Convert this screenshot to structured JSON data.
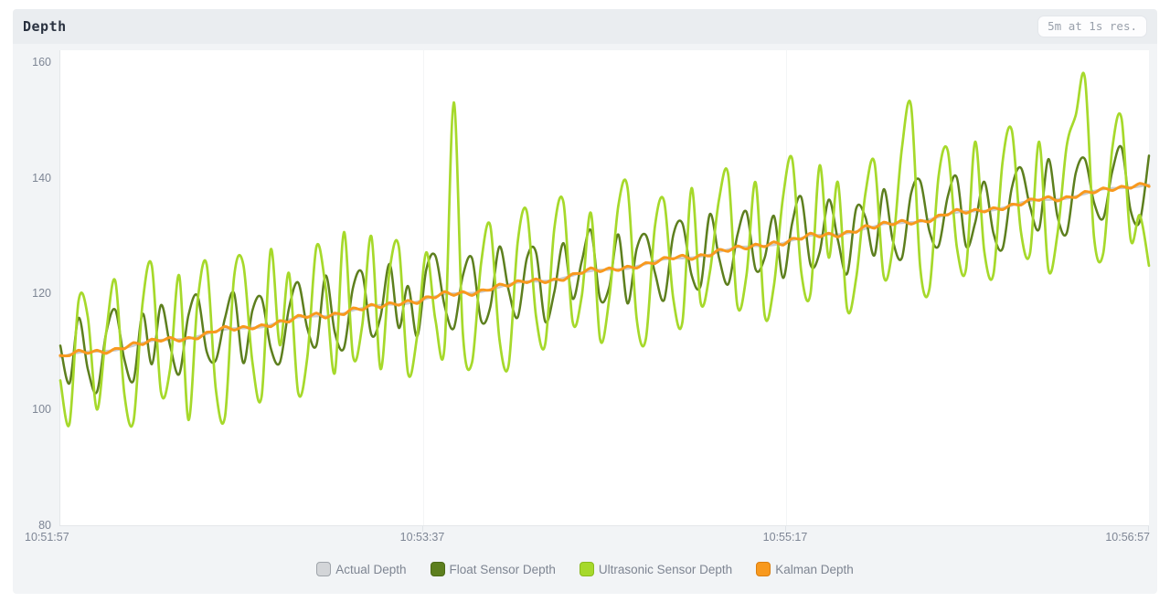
{
  "header": {
    "title": "Depth",
    "badge": "5m at 1s res."
  },
  "chart_data": {
    "type": "line",
    "title": "Depth",
    "window": "5m",
    "resolution": "1s",
    "x_start": "10:51:57",
    "x_end": "10:56:57",
    "x_ticks": [
      "10:51:57",
      "10:53:37",
      "10:55:17",
      "10:56:57"
    ],
    "y_ticks": [
      80,
      100,
      120,
      140,
      160
    ],
    "ylim": [
      80,
      162
    ],
    "grid": "vertical-faint",
    "legend_position": "bottom-center",
    "series": [
      {
        "name": "Actual Depth",
        "color": "#c9cdd1",
        "swatch": "#d3d5d8",
        "swatch_border": "#9fa4aa",
        "width": 2.5,
        "markers": false,
        "values": [
          109.0,
          109.5,
          109.8,
          110.0,
          110.0,
          110.1,
          110.2,
          110.6,
          111.0,
          111.5,
          111.8,
          112.0,
          112.0,
          112.1,
          112.2,
          112.6,
          113.0,
          113.5,
          113.8,
          114.0,
          114.0,
          114.1,
          114.2,
          114.6,
          115.1,
          115.5,
          115.9,
          116.0,
          116.1,
          116.1,
          116.3,
          116.6,
          117.1,
          117.5,
          117.9,
          118.0,
          118.1,
          118.1,
          118.3,
          118.6,
          119.1,
          119.5,
          119.9,
          120.0,
          120.1,
          120.1,
          120.3,
          120.7,
          121.1,
          121.6,
          121.9,
          122.1,
          122.1,
          122.2,
          122.3,
          122.7,
          123.1,
          123.6,
          123.9,
          124.1,
          124.1,
          124.2,
          124.3,
          124.7,
          125.1,
          125.6,
          125.9,
          126.1,
          126.1,
          126.2,
          126.4,
          126.7,
          127.2,
          127.6,
          128.0,
          128.1,
          128.2,
          128.2,
          128.4,
          128.7,
          129.2,
          129.6,
          130.0,
          130.1,
          130.2,
          130.2,
          130.4,
          130.7,
          131.2,
          131.6,
          132.0,
          132.1,
          132.2,
          132.3,
          132.4,
          132.8,
          133.2,
          133.7,
          134.0,
          134.2,
          134.2,
          134.3,
          134.4,
          134.8,
          135.2,
          135.7,
          136.0,
          136.2,
          136.2,
          136.3,
          136.4,
          136.8,
          137.2,
          137.7,
          138.0,
          138.2,
          138.2,
          138.3,
          138.5,
          138.8
        ]
      },
      {
        "name": "Float Sensor Depth",
        "color": "#5d7f1e",
        "swatch": "#5d7f1e",
        "swatch_border": "#4b6a16",
        "width": 2.5,
        "markers": false,
        "values": [
          111.0,
          104.5,
          115.8,
          107.0,
          103.0,
          113.1,
          117.2,
          108.6,
          105.0,
          116.5,
          107.8,
          118.0,
          111.0,
          106.1,
          116.2,
          119.6,
          110.0,
          108.5,
          115.8,
          120.0,
          108.0,
          117.1,
          119.2,
          110.6,
          108.1,
          117.5,
          121.9,
          114.0,
          111.1,
          123.1,
          113.3,
          110.6,
          121.1,
          123.5,
          112.9,
          116.0,
          125.1,
          114.1,
          121.3,
          112.6,
          124.1,
          126.5,
          117.9,
          114.0,
          123.1,
          126.1,
          115.3,
          117.7,
          128.1,
          120.6,
          115.9,
          126.1,
          127.1,
          115.2,
          120.3,
          128.7,
          119.1,
          125.6,
          130.9,
          119.1,
          121.1,
          130.2,
          118.3,
          127.7,
          130.1,
          123.6,
          118.9,
          130.1,
          132.1,
          123.2,
          121.4,
          133.7,
          126.2,
          121.6,
          130.0,
          134.1,
          124.2,
          126.2,
          133.4,
          122.7,
          132.2,
          136.6,
          125.0,
          127.1,
          136.2,
          129.2,
          123.4,
          134.7,
          133.2,
          126.6,
          138.0,
          129.1,
          126.2,
          137.3,
          139.4,
          130.8,
          128.2,
          136.7,
          140.0,
          128.2,
          132.2,
          139.3,
          130.4,
          127.8,
          138.2,
          141.7,
          135.0,
          131.2,
          143.2,
          133.3,
          130.4,
          140.8,
          143.2,
          135.7,
          133.0,
          141.2,
          145.2,
          134.3,
          132.5,
          143.8
        ]
      },
      {
        "name": "Ultrasonic Sensor Depth",
        "color": "#a6d92b",
        "swatch": "#a6d92b",
        "swatch_border": "#8aba1d",
        "width": 2.7,
        "markers": false,
        "values": [
          105.0,
          97.5,
          118.8,
          116.0,
          100.0,
          113.1,
          122.2,
          102.6,
          98.0,
          118.5,
          124.8,
          103.0,
          107.0,
          123.1,
          98.2,
          118.6,
          125.0,
          103.5,
          98.8,
          123.0,
          125.0,
          108.1,
          102.2,
          127.6,
          111.1,
          123.5,
          102.9,
          109.0,
          128.1,
          121.1,
          106.3,
          130.6,
          109.1,
          114.5,
          129.9,
          107.0,
          124.1,
          128.1,
          106.3,
          112.6,
          127.1,
          115.5,
          110.9,
          153.0,
          113.1,
          108.1,
          125.3,
          131.7,
          112.1,
          107.6,
          128.9,
          134.1,
          116.1,
          111.2,
          131.3,
          135.7,
          115.1,
          119.6,
          133.9,
          112.1,
          119.1,
          135.2,
          138.3,
          115.7,
          112.1,
          131.6,
          135.9,
          119.1,
          115.1,
          138.2,
          118.4,
          123.7,
          136.2,
          140.6,
          118.0,
          123.1,
          139.2,
          116.2,
          121.4,
          136.7,
          143.2,
          123.6,
          120.0,
          142.1,
          126.2,
          139.2,
          117.4,
          122.7,
          137.2,
          142.6,
          123.0,
          128.1,
          145.2,
          152.3,
          124.4,
          120.8,
          140.2,
          144.7,
          128.0,
          124.2,
          146.2,
          127.3,
          123.4,
          142.8,
          148.2,
          130.7,
          127.0,
          146.2,
          124.2,
          130.3,
          145.4,
          150.8,
          157.2,
          129.7,
          127.0,
          145.2,
          150.2,
          129.3,
          133.5,
          124.8
        ]
      },
      {
        "name": "Kalman Depth",
        "color": "#f8991e",
        "swatch": "#f8991e",
        "swatch_border": "#da7e10",
        "width": 3,
        "markers": true,
        "values": [
          109.3,
          109.3,
          110.2,
          109.7,
          110.2,
          109.7,
          110.5,
          110.5,
          111.5,
          111.2,
          112.1,
          111.8,
          112.4,
          111.8,
          112.4,
          112.2,
          113.3,
          113.4,
          114.3,
          113.7,
          114.3,
          113.9,
          114.6,
          114.3,
          115.3,
          115.1,
          116.2,
          115.9,
          116.6,
          115.8,
          116.6,
          116.4,
          117.5,
          117.2,
          118.1,
          117.6,
          118.4,
          118.0,
          118.8,
          118.3,
          119.4,
          119.3,
          120.3,
          119.7,
          120.3,
          119.7,
          120.6,
          120.6,
          121.6,
          121.3,
          122.2,
          121.9,
          122.5,
          121.9,
          122.5,
          122.3,
          123.4,
          123.5,
          124.4,
          123.8,
          124.4,
          124.0,
          124.7,
          124.4,
          125.3,
          125.2,
          126.2,
          126.0,
          126.6,
          125.9,
          126.7,
          126.5,
          127.6,
          127.3,
          128.2,
          127.7,
          128.5,
          128.1,
          128.9,
          128.4,
          129.5,
          129.4,
          130.4,
          129.8,
          130.4,
          129.8,
          130.7,
          130.6,
          131.7,
          131.3,
          132.3,
          131.9,
          132.6,
          132.0,
          132.6,
          132.4,
          133.5,
          133.6,
          134.5,
          133.9,
          134.5,
          134.1,
          134.8,
          134.5,
          135.4,
          135.3,
          136.3,
          136.1,
          136.7,
          136.0,
          136.7,
          136.6,
          137.6,
          137.4,
          138.2,
          137.8,
          138.5,
          138.2,
          139.0,
          138.5
        ]
      }
    ]
  }
}
